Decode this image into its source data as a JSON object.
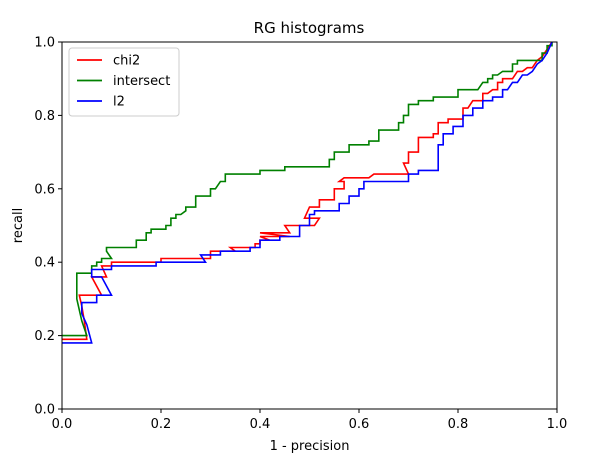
{
  "chart_data": {
    "type": "line",
    "title": "RG histograms",
    "xlabel": "1 - precision",
    "ylabel": "recall",
    "xlim": [
      0.0,
      1.0
    ],
    "ylim": [
      0.0,
      1.0
    ],
    "xticks": [
      "0.0",
      "0.2",
      "0.4",
      "0.6",
      "0.8",
      "1.0"
    ],
    "yticks": [
      "0.0",
      "0.2",
      "0.4",
      "0.6",
      "0.8",
      "1.0"
    ],
    "grid": false,
    "legend_position": "top-left",
    "series": [
      {
        "name": "chi2",
        "color": "#ff0000",
        "points": [
          [
            0.0,
            0.19
          ],
          [
            0.05,
            0.19
          ],
          [
            0.045,
            0.24
          ],
          [
            0.04,
            0.28
          ],
          [
            0.035,
            0.31
          ],
          [
            0.08,
            0.31
          ],
          [
            0.06,
            0.36
          ],
          [
            0.09,
            0.36
          ],
          [
            0.08,
            0.39
          ],
          [
            0.1,
            0.39
          ],
          [
            0.1,
            0.4
          ],
          [
            0.2,
            0.4
          ],
          [
            0.2,
            0.41
          ],
          [
            0.3,
            0.41
          ],
          [
            0.3,
            0.43
          ],
          [
            0.35,
            0.43
          ],
          [
            0.34,
            0.44
          ],
          [
            0.39,
            0.44
          ],
          [
            0.39,
            0.45
          ],
          [
            0.4,
            0.45
          ],
          [
            0.4,
            0.46
          ],
          [
            0.42,
            0.46
          ],
          [
            0.4,
            0.47
          ],
          [
            0.46,
            0.47
          ],
          [
            0.4,
            0.48
          ],
          [
            0.46,
            0.48
          ],
          [
            0.45,
            0.5
          ],
          [
            0.51,
            0.5
          ],
          [
            0.52,
            0.52
          ],
          [
            0.49,
            0.52
          ],
          [
            0.5,
            0.55
          ],
          [
            0.52,
            0.55
          ],
          [
            0.52,
            0.57
          ],
          [
            0.55,
            0.57
          ],
          [
            0.55,
            0.6
          ],
          [
            0.57,
            0.6
          ],
          [
            0.57,
            0.62
          ],
          [
            0.56,
            0.62
          ],
          [
            0.57,
            0.63
          ],
          [
            0.62,
            0.63
          ],
          [
            0.63,
            0.64
          ],
          [
            0.7,
            0.64
          ],
          [
            0.69,
            0.67
          ],
          [
            0.7,
            0.67
          ],
          [
            0.7,
            0.7
          ],
          [
            0.72,
            0.7
          ],
          [
            0.72,
            0.74
          ],
          [
            0.75,
            0.74
          ],
          [
            0.75,
            0.75
          ],
          [
            0.76,
            0.75
          ],
          [
            0.76,
            0.78
          ],
          [
            0.78,
            0.78
          ],
          [
            0.78,
            0.79
          ],
          [
            0.81,
            0.79
          ],
          [
            0.81,
            0.82
          ],
          [
            0.82,
            0.82
          ],
          [
            0.83,
            0.84
          ],
          [
            0.85,
            0.84
          ],
          [
            0.85,
            0.86
          ],
          [
            0.86,
            0.86
          ],
          [
            0.87,
            0.87
          ],
          [
            0.88,
            0.87
          ],
          [
            0.88,
            0.89
          ],
          [
            0.89,
            0.89
          ],
          [
            0.89,
            0.9
          ],
          [
            0.91,
            0.9
          ],
          [
            0.92,
            0.92
          ],
          [
            0.93,
            0.92
          ],
          [
            0.94,
            0.93
          ],
          [
            0.95,
            0.93
          ],
          [
            0.96,
            0.95
          ],
          [
            0.97,
            0.96
          ],
          [
            0.98,
            0.98
          ],
          [
            0.99,
            1.0
          ]
        ]
      },
      {
        "name": "intersect",
        "color": "#008000",
        "points": [
          [
            0.0,
            0.2
          ],
          [
            0.05,
            0.2
          ],
          [
            0.04,
            0.24
          ],
          [
            0.035,
            0.27
          ],
          [
            0.03,
            0.3
          ],
          [
            0.03,
            0.37
          ],
          [
            0.06,
            0.37
          ],
          [
            0.06,
            0.39
          ],
          [
            0.07,
            0.39
          ],
          [
            0.07,
            0.4
          ],
          [
            0.08,
            0.4
          ],
          [
            0.08,
            0.41
          ],
          [
            0.1,
            0.41
          ],
          [
            0.09,
            0.43
          ],
          [
            0.09,
            0.44
          ],
          [
            0.15,
            0.44
          ],
          [
            0.15,
            0.46
          ],
          [
            0.17,
            0.46
          ],
          [
            0.17,
            0.48
          ],
          [
            0.18,
            0.48
          ],
          [
            0.18,
            0.49
          ],
          [
            0.21,
            0.49
          ],
          [
            0.21,
            0.5
          ],
          [
            0.22,
            0.5
          ],
          [
            0.22,
            0.52
          ],
          [
            0.23,
            0.52
          ],
          [
            0.23,
            0.53
          ],
          [
            0.24,
            0.53
          ],
          [
            0.25,
            0.54
          ],
          [
            0.25,
            0.55
          ],
          [
            0.27,
            0.55
          ],
          [
            0.27,
            0.58
          ],
          [
            0.3,
            0.58
          ],
          [
            0.3,
            0.6
          ],
          [
            0.31,
            0.6
          ],
          [
            0.32,
            0.62
          ],
          [
            0.33,
            0.62
          ],
          [
            0.33,
            0.64
          ],
          [
            0.4,
            0.64
          ],
          [
            0.4,
            0.65
          ],
          [
            0.45,
            0.65
          ],
          [
            0.45,
            0.66
          ],
          [
            0.54,
            0.66
          ],
          [
            0.54,
            0.67
          ],
          [
            0.54,
            0.68
          ],
          [
            0.55,
            0.68
          ],
          [
            0.55,
            0.7
          ],
          [
            0.58,
            0.7
          ],
          [
            0.58,
            0.72
          ],
          [
            0.62,
            0.72
          ],
          [
            0.62,
            0.73
          ],
          [
            0.64,
            0.73
          ],
          [
            0.64,
            0.76
          ],
          [
            0.68,
            0.76
          ],
          [
            0.68,
            0.78
          ],
          [
            0.69,
            0.78
          ],
          [
            0.69,
            0.8
          ],
          [
            0.7,
            0.8
          ],
          [
            0.7,
            0.83
          ],
          [
            0.72,
            0.83
          ],
          [
            0.72,
            0.84
          ],
          [
            0.75,
            0.84
          ],
          [
            0.75,
            0.85
          ],
          [
            0.8,
            0.85
          ],
          [
            0.8,
            0.87
          ],
          [
            0.84,
            0.87
          ],
          [
            0.85,
            0.89
          ],
          [
            0.86,
            0.89
          ],
          [
            0.86,
            0.9
          ],
          [
            0.87,
            0.9
          ],
          [
            0.87,
            0.91
          ],
          [
            0.88,
            0.91
          ],
          [
            0.89,
            0.92
          ],
          [
            0.91,
            0.92
          ],
          [
            0.91,
            0.94
          ],
          [
            0.92,
            0.94
          ],
          [
            0.92,
            0.95
          ],
          [
            0.97,
            0.95
          ],
          [
            0.97,
            0.97
          ],
          [
            0.98,
            0.97
          ],
          [
            0.98,
            0.99
          ],
          [
            0.99,
            0.99
          ],
          [
            0.99,
            1.0
          ]
        ]
      },
      {
        "name": "l2",
        "color": "#0000ff",
        "points": [
          [
            0.0,
            0.18
          ],
          [
            0.06,
            0.18
          ],
          [
            0.05,
            0.23
          ],
          [
            0.04,
            0.26
          ],
          [
            0.04,
            0.29
          ],
          [
            0.07,
            0.29
          ],
          [
            0.07,
            0.31
          ],
          [
            0.1,
            0.31
          ],
          [
            0.08,
            0.36
          ],
          [
            0.06,
            0.36
          ],
          [
            0.06,
            0.38
          ],
          [
            0.1,
            0.38
          ],
          [
            0.1,
            0.39
          ],
          [
            0.19,
            0.39
          ],
          [
            0.19,
            0.4
          ],
          [
            0.29,
            0.4
          ],
          [
            0.28,
            0.42
          ],
          [
            0.32,
            0.42
          ],
          [
            0.32,
            0.43
          ],
          [
            0.38,
            0.43
          ],
          [
            0.38,
            0.44
          ],
          [
            0.4,
            0.44
          ],
          [
            0.4,
            0.46
          ],
          [
            0.44,
            0.46
          ],
          [
            0.44,
            0.47
          ],
          [
            0.48,
            0.47
          ],
          [
            0.48,
            0.5
          ],
          [
            0.5,
            0.5
          ],
          [
            0.5,
            0.53
          ],
          [
            0.51,
            0.53
          ],
          [
            0.51,
            0.54
          ],
          [
            0.56,
            0.54
          ],
          [
            0.56,
            0.56
          ],
          [
            0.58,
            0.56
          ],
          [
            0.58,
            0.58
          ],
          [
            0.6,
            0.58
          ],
          [
            0.6,
            0.6
          ],
          [
            0.61,
            0.6
          ],
          [
            0.61,
            0.62
          ],
          [
            0.7,
            0.62
          ],
          [
            0.7,
            0.64
          ],
          [
            0.72,
            0.64
          ],
          [
            0.72,
            0.65
          ],
          [
            0.76,
            0.65
          ],
          [
            0.76,
            0.72
          ],
          [
            0.77,
            0.72
          ],
          [
            0.77,
            0.75
          ],
          [
            0.79,
            0.75
          ],
          [
            0.79,
            0.77
          ],
          [
            0.81,
            0.77
          ],
          [
            0.81,
            0.8
          ],
          [
            0.83,
            0.8
          ],
          [
            0.83,
            0.82
          ],
          [
            0.85,
            0.82
          ],
          [
            0.85,
            0.84
          ],
          [
            0.87,
            0.84
          ],
          [
            0.87,
            0.85
          ],
          [
            0.89,
            0.85
          ],
          [
            0.89,
            0.87
          ],
          [
            0.9,
            0.87
          ],
          [
            0.91,
            0.89
          ],
          [
            0.92,
            0.89
          ],
          [
            0.93,
            0.91
          ],
          [
            0.94,
            0.91
          ],
          [
            0.95,
            0.92
          ],
          [
            0.96,
            0.94
          ],
          [
            0.97,
            0.95
          ],
          [
            0.98,
            0.97
          ],
          [
            0.99,
            1.0
          ]
        ]
      }
    ]
  }
}
